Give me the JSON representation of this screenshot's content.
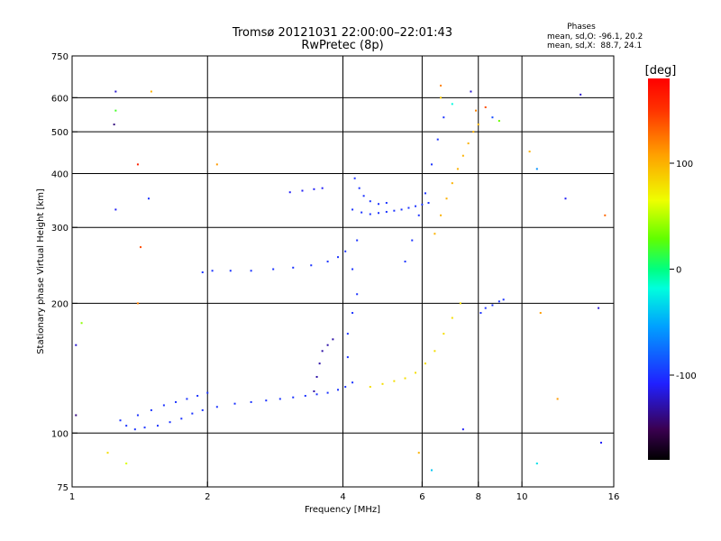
{
  "chart_data": {
    "type": "scatter",
    "title": "Tromsø 20121031 22:00:00–22:01:43",
    "subtitle": "RwPretec (8p)",
    "xlabel": "Frequency [MHz]",
    "ylabel": "Stationary phase Virtual Height [km]",
    "x_scale": "log2",
    "y_scale": "log",
    "xlim": [
      1,
      16
    ],
    "ylim": [
      75,
      750
    ],
    "x_ticks": [
      {
        "v": 1,
        "label": "1"
      },
      {
        "v": 2,
        "label": "2"
      },
      {
        "v": 4,
        "label": "4"
      },
      {
        "v": 6,
        "label": "6"
      },
      {
        "v": 8,
        "label": "8"
      },
      {
        "v": 10,
        "label": "10"
      },
      {
        "v": 16,
        "label": "16"
      }
    ],
    "y_ticks": [
      {
        "v": 75,
        "label": "75"
      },
      {
        "v": 100,
        "label": "100"
      },
      {
        "v": 200,
        "label": "200"
      },
      {
        "v": 300,
        "label": "300"
      },
      {
        "v": 400,
        "label": "400"
      },
      {
        "v": 500,
        "label": "500"
      },
      {
        "v": 600,
        "label": "600"
      },
      {
        "v": 750,
        "label": "750"
      }
    ],
    "x_gridlines": [
      2,
      4,
      6,
      8,
      10
    ],
    "y_gridlines": [
      100,
      200,
      300,
      400,
      500,
      600
    ],
    "grid": true,
    "phases": {
      "title": "Phases",
      "line_o": "mean, sd,O: -96.1, 20.2",
      "line_x": "mean, sd,X:  88.7, 24.1"
    },
    "colorbar": {
      "label": "[deg]",
      "range": [
        -180,
        180
      ],
      "ticks": [
        {
          "v": 100,
          "label": "100"
        },
        {
          "v": 0,
          "label": "0"
        },
        {
          "v": -100,
          "label": "-100"
        }
      ]
    },
    "traces": [
      {
        "phase": -100,
        "points": [
          [
            1.32,
            104
          ],
          [
            1.38,
            102
          ],
          [
            1.45,
            103
          ],
          [
            1.55,
            104
          ],
          [
            1.65,
            106
          ],
          [
            1.75,
            108
          ],
          [
            1.85,
            111
          ],
          [
            1.95,
            113
          ],
          [
            2.1,
            115
          ],
          [
            2.3,
            117
          ],
          [
            2.5,
            118
          ],
          [
            2.7,
            119
          ],
          [
            2.9,
            120
          ],
          [
            3.1,
            121
          ],
          [
            3.3,
            122
          ],
          [
            3.5,
            123
          ],
          [
            3.7,
            124
          ],
          [
            3.9,
            126
          ],
          [
            4.05,
            128
          ],
          [
            4.2,
            131
          ]
        ]
      },
      {
        "phase": -100,
        "points": [
          [
            1.28,
            107
          ],
          [
            1.4,
            110
          ],
          [
            1.5,
            113
          ],
          [
            1.6,
            116
          ],
          [
            1.7,
            118
          ],
          [
            1.8,
            120
          ],
          [
            1.9,
            122
          ],
          [
            2.0,
            124
          ]
        ]
      },
      {
        "phase": -100,
        "points": [
          [
            1.95,
            236
          ],
          [
            2.05,
            238
          ],
          [
            2.25,
            238
          ],
          [
            2.5,
            238
          ],
          [
            2.8,
            240
          ],
          [
            3.1,
            242
          ],
          [
            3.4,
            245
          ],
          [
            3.7,
            250
          ],
          [
            3.9,
            256
          ],
          [
            4.05,
            264
          ]
        ]
      },
      {
        "phase": -110,
        "points": [
          [
            3.05,
            362
          ],
          [
            3.25,
            365
          ],
          [
            3.45,
            368
          ],
          [
            3.6,
            370
          ]
        ]
      },
      {
        "phase": -100,
        "points": [
          [
            4.2,
            330
          ],
          [
            4.4,
            325
          ],
          [
            4.6,
            322
          ],
          [
            4.8,
            324
          ],
          [
            5.0,
            326
          ],
          [
            5.2,
            328
          ],
          [
            5.4,
            330
          ],
          [
            5.6,
            333
          ],
          [
            5.8,
            336
          ],
          [
            6.0,
            339
          ],
          [
            6.2,
            342
          ]
        ]
      },
      {
        "phase": -100,
        "points": [
          [
            4.25,
            390
          ],
          [
            4.35,
            370
          ],
          [
            4.45,
            355
          ],
          [
            4.6,
            345
          ],
          [
            4.8,
            340
          ],
          [
            5.0,
            342
          ]
        ]
      },
      {
        "phase": 80,
        "points": [
          [
            4.6,
            128
          ],
          [
            4.9,
            130
          ],
          [
            5.2,
            132
          ],
          [
            5.5,
            134
          ],
          [
            5.8,
            138
          ],
          [
            6.1,
            145
          ],
          [
            6.4,
            155
          ],
          [
            6.7,
            170
          ],
          [
            7.0,
            185
          ],
          [
            7.3,
            200
          ]
        ]
      },
      {
        "phase": -100,
        "points": [
          [
            5.5,
            250
          ],
          [
            5.7,
            280
          ],
          [
            5.9,
            320
          ],
          [
            6.1,
            360
          ],
          [
            6.3,
            420
          ],
          [
            6.5,
            480
          ],
          [
            6.7,
            540
          ]
        ]
      },
      {
        "phase": 100,
        "points": [
          [
            6.4,
            290
          ],
          [
            6.6,
            320
          ],
          [
            6.8,
            350
          ],
          [
            7.0,
            380
          ],
          [
            7.2,
            410
          ],
          [
            7.4,
            440
          ],
          [
            7.6,
            470
          ],
          [
            7.8,
            500
          ],
          [
            8.0,
            520
          ]
        ]
      },
      {
        "phase": -100,
        "points": [
          [
            8.1,
            190
          ],
          [
            8.3,
            195
          ],
          [
            8.6,
            198
          ],
          [
            8.9,
            202
          ],
          [
            9.1,
            204
          ]
        ]
      },
      {
        "phase": -100,
        "points": [
          [
            4.1,
            150
          ],
          [
            4.1,
            170
          ],
          [
            4.2,
            190
          ],
          [
            4.3,
            210
          ],
          [
            4.2,
            240
          ],
          [
            4.3,
            280
          ]
        ]
      },
      {
        "phase": -130,
        "points": [
          [
            3.45,
            125
          ],
          [
            3.5,
            135
          ],
          [
            3.55,
            145
          ],
          [
            3.6,
            155
          ],
          [
            3.7,
            160
          ],
          [
            3.8,
            165
          ]
        ]
      }
    ],
    "scatter": [
      {
        "x": 1.25,
        "y": 620,
        "phase": -120
      },
      {
        "x": 1.25,
        "y": 560,
        "phase": 20
      },
      {
        "x": 1.24,
        "y": 520,
        "phase": -140
      },
      {
        "x": 1.25,
        "y": 330,
        "phase": -110
      },
      {
        "x": 1.4,
        "y": 420,
        "phase": 160
      },
      {
        "x": 1.42,
        "y": 270,
        "phase": 140
      },
      {
        "x": 1.4,
        "y": 200,
        "phase": 120
      },
      {
        "x": 1.48,
        "y": 350,
        "phase": -100
      },
      {
        "x": 1.5,
        "y": 620,
        "phase": 100
      },
      {
        "x": 1.05,
        "y": 180,
        "phase": 40
      },
      {
        "x": 1.02,
        "y": 160,
        "phase": -120
      },
      {
        "x": 1.2,
        "y": 90,
        "phase": 80
      },
      {
        "x": 1.32,
        "y": 85,
        "phase": 60
      },
      {
        "x": 1.02,
        "y": 110,
        "phase": -140
      },
      {
        "x": 2.1,
        "y": 420,
        "phase": 110
      },
      {
        "x": 10.8,
        "y": 410,
        "phase": -60
      },
      {
        "x": 12.5,
        "y": 350,
        "phase": -110
      },
      {
        "x": 13.5,
        "y": 610,
        "phase": -120
      },
      {
        "x": 15.3,
        "y": 320,
        "phase": 130
      },
      {
        "x": 10.4,
        "y": 450,
        "phase": 100
      },
      {
        "x": 11.0,
        "y": 190,
        "phase": 110
      },
      {
        "x": 10.8,
        "y": 85,
        "phase": -30
      },
      {
        "x": 14.8,
        "y": 195,
        "phase": -120
      },
      {
        "x": 6.3,
        "y": 82,
        "phase": -40
      },
      {
        "x": 5.9,
        "y": 90,
        "phase": 100
      },
      {
        "x": 7.4,
        "y": 102,
        "phase": -110
      },
      {
        "x": 7.7,
        "y": 620,
        "phase": -120
      },
      {
        "x": 6.6,
        "y": 640,
        "phase": 120
      },
      {
        "x": 15.0,
        "y": 95,
        "phase": -110
      },
      {
        "x": 12.0,
        "y": 120,
        "phase": 110
      },
      {
        "x": 6.6,
        "y": 600,
        "phase": 90
      },
      {
        "x": 7.0,
        "y": 580,
        "phase": -20
      },
      {
        "x": 7.9,
        "y": 560,
        "phase": 120
      },
      {
        "x": 8.3,
        "y": 570,
        "phase": 140
      },
      {
        "x": 8.6,
        "y": 540,
        "phase": -90
      },
      {
        "x": 8.9,
        "y": 530,
        "phase": 30
      }
    ]
  }
}
